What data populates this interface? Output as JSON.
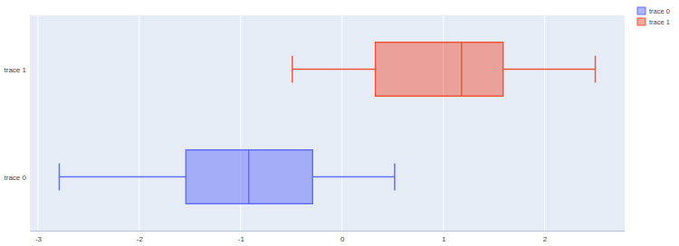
{
  "chart_data": {
    "type": "box",
    "orientation": "horizontal",
    "series": [
      {
        "name": "trace 0",
        "color": "#636efa",
        "min": -2.79,
        "q1": -1.54,
        "median": -0.92,
        "q3": -0.29,
        "max": 0.52
      },
      {
        "name": "trace 1",
        "color": "#EF553B",
        "min": -0.49,
        "q1": 0.33,
        "median": 1.18,
        "q3": 1.59,
        "max": 2.5
      }
    ],
    "xlim": [
      -3.08,
      2.79
    ],
    "xticks": [
      -3,
      -2,
      -1,
      0,
      1,
      2
    ],
    "grid": true,
    "legend": "right"
  }
}
